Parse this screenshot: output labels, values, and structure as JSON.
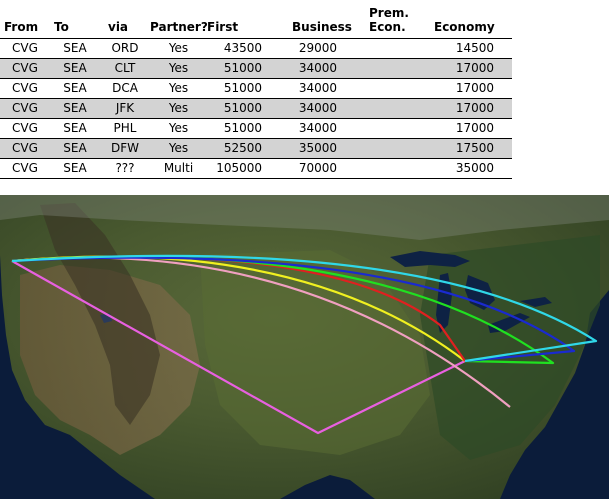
{
  "table": {
    "headers": {
      "from": "From",
      "to": "To",
      "via": "via",
      "partner": "Partner?",
      "first": "First",
      "business": "Business",
      "prem_econ_line1": "Prem.",
      "prem_econ_line2": "Econ.",
      "economy": "Economy"
    },
    "rows": [
      {
        "from": "CVG",
        "to": "SEA",
        "via": "ORD",
        "partner": "Yes",
        "first": "43500",
        "business": "29000",
        "prem_econ": "",
        "economy": "14500"
      },
      {
        "from": "CVG",
        "to": "SEA",
        "via": "CLT",
        "partner": "Yes",
        "first": "51000",
        "business": "34000",
        "prem_econ": "",
        "economy": "17000"
      },
      {
        "from": "CVG",
        "to": "SEA",
        "via": "DCA",
        "partner": "Yes",
        "first": "51000",
        "business": "34000",
        "prem_econ": "",
        "economy": "17000"
      },
      {
        "from": "CVG",
        "to": "SEA",
        "via": "JFK",
        "partner": "Yes",
        "first": "51000",
        "business": "34000",
        "prem_econ": "",
        "economy": "17000"
      },
      {
        "from": "CVG",
        "to": "SEA",
        "via": "PHL",
        "partner": "Yes",
        "first": "51000",
        "business": "34000",
        "prem_econ": "",
        "economy": "17000"
      },
      {
        "from": "CVG",
        "to": "SEA",
        "via": "DFW",
        "partner": "Yes",
        "first": "52500",
        "business": "35000",
        "prem_econ": "",
        "economy": "17500"
      },
      {
        "from": "CVG",
        "to": "SEA",
        "via": "???",
        "partner": "Multi",
        "first": "105000",
        "business": "70000",
        "prem_econ": "",
        "economy": "35000"
      }
    ]
  },
  "map": {
    "route_colors": {
      "ord": "#e02020",
      "clt": "#20e020",
      "dca": "#1a2ad0",
      "jfk": "#30d8e8",
      "phl": "#f0f020",
      "dfw": "#e860e0",
      "other": "#f0a0c0"
    }
  }
}
